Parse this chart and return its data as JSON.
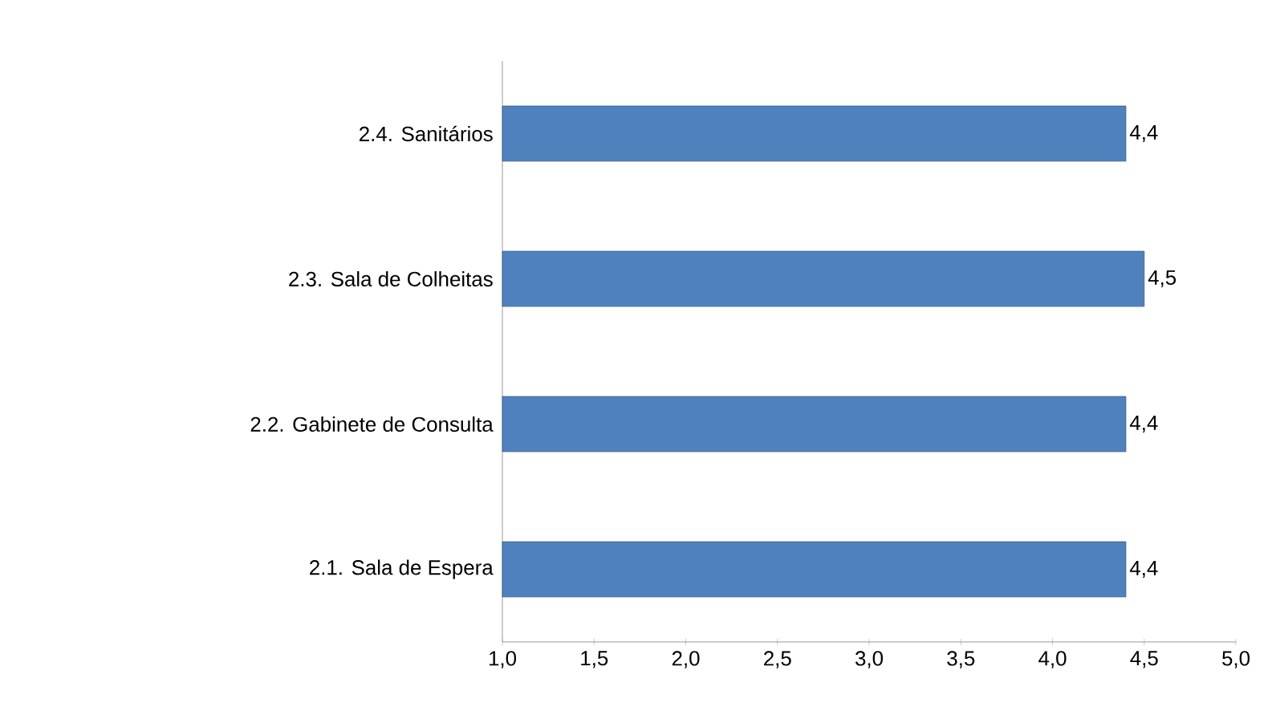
{
  "chart_data": {
    "type": "bar",
    "orientation": "horizontal",
    "categories": [
      "2.4. Sanitários",
      "2.3. Sala de Colheitas",
      "2.2. Gabinete de Consulta",
      "2.1. Sala de Espera"
    ],
    "values": [
      4.4,
      4.5,
      4.4,
      4.4
    ],
    "value_labels": [
      "4,4",
      "4,5",
      "4,4",
      "4,4"
    ],
    "color": "#4f81bd",
    "xlim": [
      1,
      5
    ],
    "xticks": [
      {
        "value": 1,
        "label": "1,0"
      },
      {
        "value": 1.5,
        "label": "1,5"
      },
      {
        "value": 2,
        "label": "2,0"
      },
      {
        "value": 2.5,
        "label": "2,5"
      },
      {
        "value": 3,
        "label": "3,0"
      },
      {
        "value": 3.5,
        "label": "3,5"
      },
      {
        "value": 4,
        "label": "4,0"
      },
      {
        "value": 4.5,
        "label": "4,5"
      },
      {
        "value": 5,
        "label": "5,0"
      }
    ],
    "grid": false
  }
}
